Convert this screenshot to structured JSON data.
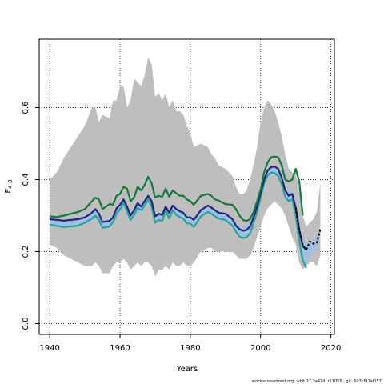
{
  "chart_data": {
    "type": "line",
    "xlabel": "Years",
    "ylabel": "F",
    "ylabel_sub": "4-8",
    "xlim": [
      1937,
      2021
    ],
    "ylim": [
      -0.03,
      0.79
    ],
    "x_ticks": [
      1940,
      1960,
      1980,
      2000,
      2020
    ],
    "y_ticks": [
      0.0,
      0.2,
      0.4,
      0.6
    ],
    "y_tick_labels": [
      "0.0",
      "0.2",
      "0.4",
      "0.6"
    ],
    "grid": true,
    "colors": {
      "band": "#bebebe",
      "navy": "#24237a",
      "green": "#117a3b",
      "teal": "#2aa396",
      "light_band": "#9ec0e4",
      "dashed": "#000000"
    },
    "grey_band": {
      "x": [
        1940,
        1942,
        1944,
        1946,
        1948,
        1950,
        1952,
        1953,
        1954,
        1955,
        1957,
        1958,
        1959,
        1960,
        1961,
        1962,
        1963,
        1964,
        1965,
        1966,
        1967,
        1968,
        1969,
        1970,
        1971,
        1972,
        1973,
        1974,
        1975,
        1976,
        1977,
        1978,
        1979,
        1980,
        1981,
        1983,
        1985,
        1986,
        1987,
        1988,
        1990,
        1992,
        1993,
        1994,
        1995,
        1996,
        1997,
        1998,
        1999,
        2000,
        2001,
        2002,
        2003,
        2004,
        2005,
        2006,
        2007,
        2008,
        2009,
        2010,
        2011,
        2012,
        2013,
        2014,
        2015,
        2016,
        2017
      ],
      "upper": [
        0.4,
        0.42,
        0.46,
        0.49,
        0.52,
        0.55,
        0.6,
        0.6,
        0.56,
        0.58,
        0.57,
        0.62,
        0.62,
        0.66,
        0.66,
        0.6,
        0.62,
        0.68,
        0.67,
        0.66,
        0.69,
        0.74,
        0.72,
        0.63,
        0.64,
        0.62,
        0.64,
        0.6,
        0.62,
        0.59,
        0.59,
        0.58,
        0.55,
        0.53,
        0.49,
        0.5,
        0.49,
        0.47,
        0.46,
        0.44,
        0.43,
        0.41,
        0.38,
        0.36,
        0.36,
        0.37,
        0.4,
        0.44,
        0.49,
        0.56,
        0.6,
        0.62,
        0.61,
        0.59,
        0.56,
        0.52,
        0.47,
        0.43,
        0.42,
        0.42,
        0.37,
        0.3,
        0.27,
        0.28,
        0.29,
        0.31,
        0.39
      ],
      "lower": [
        0.22,
        0.21,
        0.19,
        0.18,
        0.17,
        0.16,
        0.16,
        0.17,
        0.16,
        0.14,
        0.14,
        0.16,
        0.17,
        0.17,
        0.18,
        0.17,
        0.15,
        0.16,
        0.17,
        0.16,
        0.17,
        0.17,
        0.16,
        0.13,
        0.15,
        0.15,
        0.16,
        0.15,
        0.17,
        0.16,
        0.16,
        0.17,
        0.16,
        0.16,
        0.17,
        0.2,
        0.21,
        0.21,
        0.2,
        0.2,
        0.2,
        0.2,
        0.19,
        0.18,
        0.18,
        0.18,
        0.19,
        0.21,
        0.24,
        0.27,
        0.3,
        0.32,
        0.33,
        0.34,
        0.33,
        0.32,
        0.3,
        0.27,
        0.24,
        0.22,
        0.17,
        0.15,
        0.16,
        0.17,
        0.17,
        0.16,
        0.19
      ]
    },
    "light_band": {
      "x": [
        1940,
        1944,
        1948,
        1950,
        1952,
        1953,
        1954,
        1955,
        1957,
        1958,
        1959,
        1960,
        1961,
        1962,
        1963,
        1964,
        1965,
        1966,
        1967,
        1968,
        1969,
        1970,
        1971,
        1972,
        1973,
        1974,
        1975,
        1976,
        1977,
        1978,
        1979,
        1980,
        1981,
        1983,
        1985,
        1986,
        1987,
        1988,
        1990,
        1992,
        1993,
        1994,
        1995,
        1996,
        1997,
        1998,
        1999,
        2000,
        2001,
        2002,
        2003,
        2004,
        2005,
        2006,
        2007,
        2008,
        2009,
        2010,
        2011,
        2012,
        2013,
        2014,
        2015,
        2016,
        2017
      ],
      "upper": [
        0.295,
        0.29,
        0.295,
        0.3,
        0.31,
        0.318,
        0.305,
        0.288,
        0.29,
        0.3,
        0.32,
        0.332,
        0.347,
        0.33,
        0.305,
        0.32,
        0.338,
        0.33,
        0.345,
        0.36,
        0.345,
        0.302,
        0.31,
        0.308,
        0.33,
        0.312,
        0.332,
        0.322,
        0.318,
        0.312,
        0.3,
        0.3,
        0.292,
        0.32,
        0.33,
        0.325,
        0.318,
        0.312,
        0.308,
        0.295,
        0.28,
        0.27,
        0.268,
        0.27,
        0.28,
        0.305,
        0.335,
        0.37,
        0.405,
        0.428,
        0.438,
        0.438,
        0.432,
        0.41,
        0.378,
        0.365,
        0.368,
        0.335,
        0.29,
        0.24,
        0.222,
        0.222,
        0.232,
        0.24,
        0.262
      ],
      "lower": [
        0.27,
        0.265,
        0.27,
        0.275,
        0.285,
        0.292,
        0.28,
        0.262,
        0.265,
        0.275,
        0.295,
        0.308,
        0.322,
        0.305,
        0.28,
        0.295,
        0.312,
        0.305,
        0.32,
        0.335,
        0.32,
        0.275,
        0.285,
        0.282,
        0.305,
        0.287,
        0.307,
        0.297,
        0.292,
        0.287,
        0.275,
        0.275,
        0.267,
        0.295,
        0.305,
        0.3,
        0.292,
        0.287,
        0.283,
        0.27,
        0.255,
        0.245,
        0.242,
        0.245,
        0.255,
        0.28,
        0.31,
        0.345,
        0.38,
        0.403,
        0.413,
        0.413,
        0.407,
        0.385,
        0.352,
        0.34,
        0.342,
        0.3,
        0.23,
        0.18,
        0.158,
        0.19,
        0.2,
        0.21,
        0.24
      ]
    },
    "series": [
      {
        "key": "green",
        "x": [
          1940,
          1942,
          1944,
          1946,
          1948,
          1950,
          1952,
          1953,
          1954,
          1955,
          1957,
          1958,
          1959,
          1960,
          1961,
          1962,
          1963,
          1964,
          1965,
          1966,
          1967,
          1968,
          1969,
          1970,
          1971,
          1972,
          1973,
          1974,
          1975,
          1976,
          1977,
          1978,
          1979,
          1980,
          1981,
          1983,
          1985,
          1986,
          1987,
          1988,
          1990,
          1992,
          1993,
          1994,
          1995,
          1996,
          1997,
          1998,
          1999,
          2000,
          2001,
          2002,
          2003,
          2004,
          2005,
          2006,
          2007,
          2008,
          2009,
          2010,
          2011,
          2012
        ],
        "y": [
          0.298,
          0.296,
          0.3,
          0.305,
          0.31,
          0.318,
          0.34,
          0.35,
          0.345,
          0.318,
          0.332,
          0.33,
          0.355,
          0.36,
          0.38,
          0.375,
          0.34,
          0.35,
          0.38,
          0.37,
          0.385,
          0.408,
          0.39,
          0.35,
          0.355,
          0.352,
          0.375,
          0.352,
          0.37,
          0.362,
          0.355,
          0.355,
          0.345,
          0.34,
          0.33,
          0.355,
          0.36,
          0.355,
          0.345,
          0.342,
          0.332,
          0.33,
          0.318,
          0.3,
          0.288,
          0.285,
          0.29,
          0.31,
          0.34,
          0.372,
          0.42,
          0.448,
          0.462,
          0.464,
          0.462,
          0.44,
          0.4,
          0.395,
          0.4,
          0.43,
          0.395,
          0.3
        ]
      },
      {
        "key": "navy",
        "x": [
          1940,
          1944,
          1948,
          1950,
          1952,
          1953,
          1954,
          1955,
          1957,
          1958,
          1959,
          1960,
          1961,
          1962,
          1963,
          1964,
          1965,
          1966,
          1967,
          1968,
          1969,
          1970,
          1971,
          1972,
          1973,
          1974,
          1975,
          1976,
          1977,
          1978,
          1979,
          1980,
          1981,
          1983,
          1985,
          1986,
          1987,
          1988,
          1990,
          1992,
          1993,
          1994,
          1995,
          1996,
          1997,
          1998,
          1999,
          2000,
          2001,
          2002,
          2003,
          2004,
          2005,
          2006,
          2007,
          2008,
          2009,
          2010,
          2011,
          2012,
          2013
        ],
        "y": [
          0.29,
          0.286,
          0.29,
          0.295,
          0.308,
          0.318,
          0.305,
          0.282,
          0.285,
          0.295,
          0.32,
          0.33,
          0.345,
          0.325,
          0.3,
          0.315,
          0.335,
          0.325,
          0.34,
          0.355,
          0.34,
          0.298,
          0.305,
          0.302,
          0.325,
          0.308,
          0.328,
          0.318,
          0.312,
          0.308,
          0.295,
          0.295,
          0.288,
          0.315,
          0.328,
          0.322,
          0.315,
          0.308,
          0.305,
          0.29,
          0.272,
          0.262,
          0.258,
          0.26,
          0.27,
          0.295,
          0.325,
          0.362,
          0.4,
          0.425,
          0.435,
          0.436,
          0.43,
          0.405,
          0.37,
          0.355,
          0.36,
          0.322,
          0.26,
          0.215,
          0.205
        ]
      },
      {
        "key": "teal",
        "x": [
          1940,
          1944,
          1948,
          1950,
          1952,
          1953,
          1954,
          1955,
          1957,
          1958,
          1959,
          1960,
          1961,
          1962,
          1963,
          1964,
          1965,
          1966,
          1967,
          1968,
          1969,
          1970,
          1971,
          1972,
          1973,
          1974,
          1975,
          1976,
          1977,
          1978,
          1979,
          1980,
          1981,
          1983,
          1985,
          1986,
          1987,
          1988,
          1990,
          1992,
          1993,
          1994,
          1995,
          1996,
          1997,
          1998,
          1999,
          2000,
          2001,
          2002,
          2003,
          2004,
          2005,
          2006,
          2007,
          2008,
          2009,
          2010,
          2011,
          2012,
          2013
        ],
        "y": [
          0.275,
          0.268,
          0.272,
          0.28,
          0.292,
          0.3,
          0.288,
          0.266,
          0.27,
          0.282,
          0.305,
          0.318,
          0.335,
          0.312,
          0.288,
          0.302,
          0.322,
          0.315,
          0.328,
          0.346,
          0.325,
          0.28,
          0.288,
          0.285,
          0.315,
          0.292,
          0.315,
          0.302,
          0.296,
          0.292,
          0.278,
          0.278,
          0.268,
          0.298,
          0.31,
          0.305,
          0.298,
          0.292,
          0.288,
          0.272,
          0.255,
          0.242,
          0.238,
          0.24,
          0.25,
          0.28,
          0.31,
          0.35,
          0.39,
          0.412,
          0.42,
          0.418,
          0.41,
          0.388,
          0.352,
          0.34,
          0.345,
          0.3,
          0.23,
          0.175,
          0.155
        ]
      }
    ],
    "dashed_series": {
      "x": [
        2010,
        2011,
        2012,
        2013,
        2014,
        2015,
        2016,
        2017
      ],
      "y": [
        0.322,
        0.262,
        0.218,
        0.205,
        0.228,
        0.222,
        0.225,
        0.262
      ]
    }
  },
  "footer": "stockassessment.org, whit.27.3a47d, r11055 ; git: 503cf91af157"
}
